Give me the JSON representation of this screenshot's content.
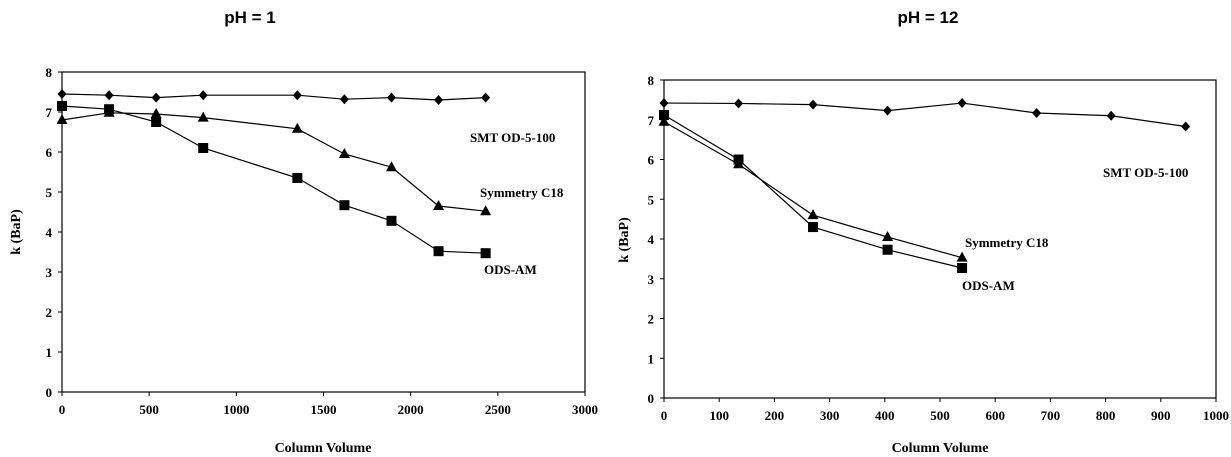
{
  "chart_data": [
    {
      "type": "line",
      "title": "pH = 1",
      "xlabel": "Column Volume",
      "ylabel": "k (BaP)",
      "xlim": [
        0,
        3000
      ],
      "ylim": [
        0,
        8
      ],
      "xticks": [
        "0",
        "500",
        "1000",
        "1500",
        "2000",
        "2500",
        "3000"
      ],
      "yticks": [
        "0",
        "1",
        "2",
        "3",
        "4",
        "5",
        "6",
        "7",
        "8"
      ],
      "grid": false,
      "series": [
        {
          "name": "SMT OD-5-100",
          "marker": "diamond",
          "x": [
            0,
            270,
            540,
            810,
            1350,
            1620,
            1890,
            2160,
            2430
          ],
          "y": [
            7.45,
            7.42,
            7.36,
            7.42,
            7.42,
            7.32,
            7.36,
            7.3,
            7.36
          ]
        },
        {
          "name": "Symmetry C18",
          "marker": "triangle",
          "x": [
            0,
            270,
            540,
            810,
            1350,
            1620,
            1890,
            2160,
            2430
          ],
          "y": [
            6.8,
            6.98,
            6.95,
            6.86,
            6.58,
            5.95,
            5.62,
            4.65,
            4.52
          ]
        },
        {
          "name": "ODS-AM",
          "marker": "square",
          "x": [
            0,
            270,
            540,
            810,
            1350,
            1620,
            1890,
            2160,
            2430
          ],
          "y": [
            7.15,
            7.07,
            6.75,
            6.1,
            5.35,
            4.67,
            4.28,
            3.52,
            3.47
          ]
        }
      ]
    },
    {
      "type": "line",
      "title": "pH = 12",
      "xlabel": "Column Volume",
      "ylabel": "k (BaP)",
      "xlim": [
        0,
        1000
      ],
      "ylim": [
        0,
        8
      ],
      "xticks": [
        "0",
        "100",
        "200",
        "300",
        "400",
        "500",
        "600",
        "700",
        "800",
        "900",
        "1000"
      ],
      "yticks": [
        "0",
        "1",
        "2",
        "3",
        "4",
        "5",
        "6",
        "7",
        "8"
      ],
      "grid": false,
      "series": [
        {
          "name": "SMT OD-5-100",
          "marker": "diamond",
          "x": [
            0,
            135,
            270,
            405,
            540,
            675,
            810,
            945
          ],
          "y": [
            7.42,
            7.41,
            7.38,
            7.23,
            7.42,
            7.17,
            7.1,
            6.83
          ]
        },
        {
          "name": "Symmetry C18",
          "marker": "triangle",
          "x": [
            0,
            135,
            270,
            405,
            540
          ],
          "y": [
            6.95,
            5.88,
            4.6,
            4.05,
            3.53
          ]
        },
        {
          "name": "ODS-AM",
          "marker": "square",
          "x": [
            0,
            135,
            270,
            405,
            540
          ],
          "y": [
            7.12,
            6.0,
            4.3,
            3.73,
            3.27
          ]
        }
      ]
    }
  ]
}
